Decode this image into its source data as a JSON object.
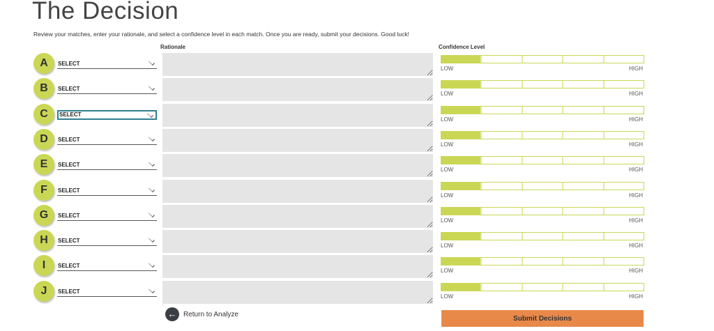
{
  "title": "The Decision",
  "subtitle": "Review your matches, enter your rationale, and select a confidence level in each match. Once you are ready, submit your decisions. Good luck!",
  "rationale_header": "Rationale",
  "confidence_header": "Confidence Level",
  "low_label": "LOW",
  "high_label": "HIGH",
  "colors": {
    "accent": "#cad755",
    "submit": "#e8894a",
    "focus": "#2f7f8f"
  },
  "rows": [
    {
      "letter": "A",
      "select": "SELECT",
      "confidence": 1
    },
    {
      "letter": "B",
      "select": "SELECT",
      "confidence": 1
    },
    {
      "letter": "C",
      "select": "SELECT",
      "confidence": 1,
      "focused": true
    },
    {
      "letter": "D",
      "select": "SELECT",
      "confidence": 1
    },
    {
      "letter": "E",
      "select": "SELECT",
      "confidence": 1
    },
    {
      "letter": "F",
      "select": "SELECT",
      "confidence": 1
    },
    {
      "letter": "G",
      "select": "SELECT",
      "confidence": 1
    },
    {
      "letter": "H",
      "select": "SELECT",
      "confidence": 1
    },
    {
      "letter": "I",
      "select": "SELECT",
      "confidence": 1
    },
    {
      "letter": "J",
      "select": "SELECT",
      "confidence": 1
    }
  ],
  "confidence_levels": 5,
  "back_label": "Return to Analyze",
  "submit_label": "Submit Decisions"
}
